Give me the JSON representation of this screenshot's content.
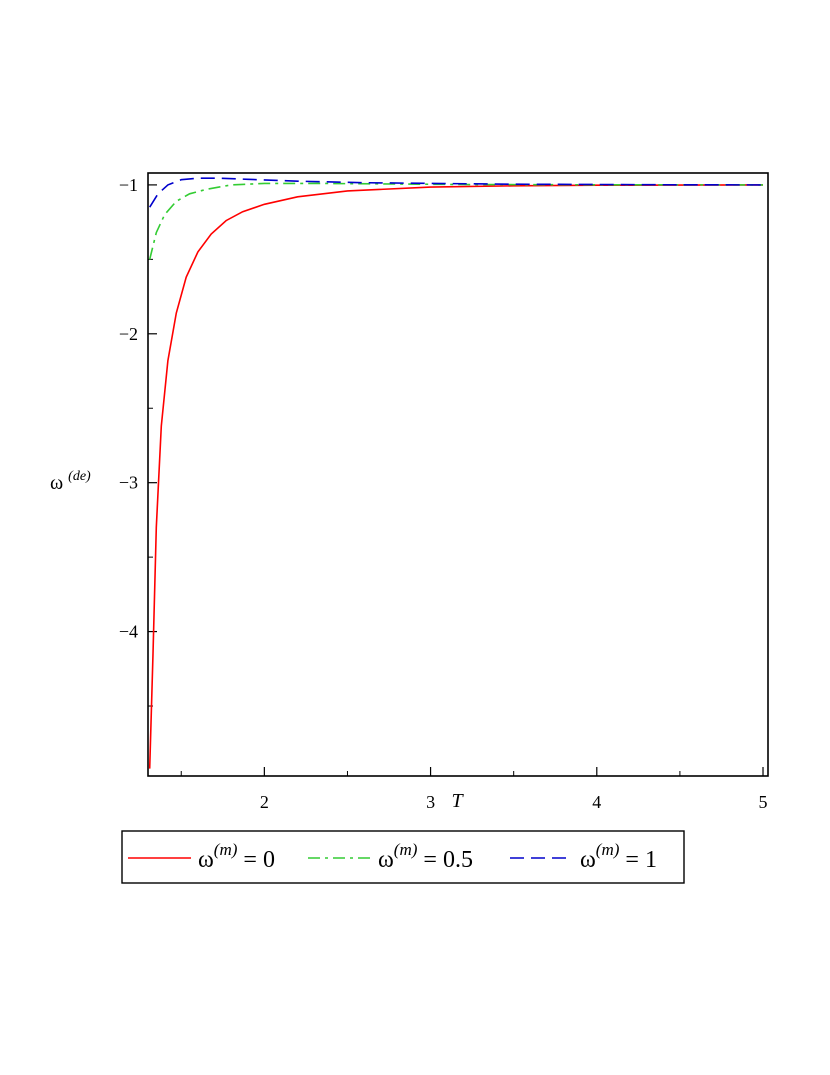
{
  "chart_data": {
    "type": "line",
    "xlabel": "T",
    "ylabel": {
      "base": "ω",
      "sup": "(de)"
    },
    "xlim": [
      1.3,
      5.03
    ],
    "ylim": [
      -4.97,
      -0.92
    ],
    "x_ticks": [
      2,
      3,
      4,
      5
    ],
    "y_ticks": [
      -1,
      -2,
      -3,
      -4
    ],
    "grid": false,
    "legend_position": "bottom",
    "series": [
      {
        "name": "ω(m) = 0",
        "label_base": "ω",
        "label_sup": "(m)",
        "label_rest": " = 0",
        "color": "#ff0000",
        "dash": "solid",
        "x": [
          1.31,
          1.33,
          1.35,
          1.38,
          1.42,
          1.47,
          1.53,
          1.6,
          1.68,
          1.77,
          1.87,
          2.0,
          2.2,
          2.5,
          3.0,
          3.5,
          4.0,
          4.5,
          5.0
        ],
        "y": [
          -4.92,
          -4.15,
          -3.3,
          -2.62,
          -2.18,
          -1.86,
          -1.62,
          -1.45,
          -1.33,
          -1.24,
          -1.18,
          -1.13,
          -1.08,
          -1.04,
          -1.015,
          -1.006,
          -1.002,
          -1.001,
          -1.0
        ]
      },
      {
        "name": "ω(m) = 0.5",
        "label_base": "ω",
        "label_sup": "(m)",
        "label_rest": " = 0.5",
        "color": "#33cc33",
        "dash": "dashdot",
        "x": [
          1.31,
          1.35,
          1.4,
          1.47,
          1.55,
          1.65,
          1.8,
          2.0,
          2.3,
          2.7,
          3.2,
          4.0,
          5.0
        ],
        "y": [
          -1.5,
          -1.32,
          -1.2,
          -1.11,
          -1.06,
          -1.03,
          -1.0,
          -0.99,
          -0.99,
          -0.993,
          -0.997,
          -0.999,
          -1.0
        ]
      },
      {
        "name": "ω(m) = 1",
        "label_base": "ω",
        "label_sup": "(m)",
        "label_rest": " = 1",
        "color": "#0000cc",
        "dash": "dash",
        "x": [
          1.31,
          1.36,
          1.42,
          1.5,
          1.6,
          1.72,
          1.9,
          2.2,
          2.6,
          3.0,
          3.5,
          4.0,
          4.5,
          5.0
        ],
        "y": [
          -1.15,
          -1.06,
          -1.0,
          -0.965,
          -0.955,
          -0.955,
          -0.962,
          -0.975,
          -0.985,
          -0.99,
          -0.995,
          -0.997,
          -0.999,
          -1.0
        ]
      }
    ]
  }
}
